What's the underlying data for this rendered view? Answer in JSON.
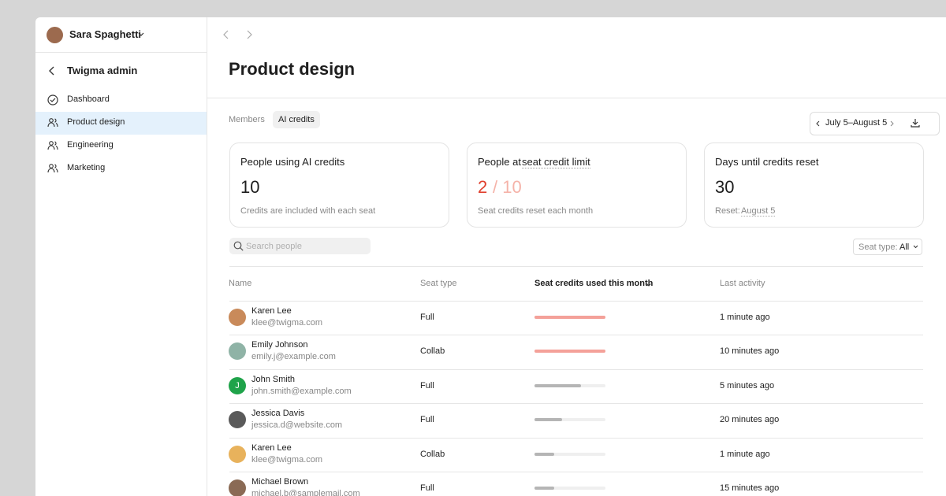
{
  "sidebar": {
    "user": "Sara Spaghetti",
    "back_title": "Twigma admin",
    "nav": [
      "Dashboard",
      "Product design",
      "Engineering",
      "Marketing"
    ],
    "selected": 1
  },
  "header": {
    "title": "Product design"
  },
  "tabs": [
    "Members",
    "AI credits"
  ],
  "date_range": "July 5–August 5",
  "cards": [
    {
      "title": "People using AI credits",
      "value": 10,
      "note": "Credits are included with each seat"
    },
    {
      "title_prefix": "People at",
      "title_link": "seat credit limit",
      "value": 2,
      "total_label": "/ 10",
      "note": "Seat credits reset each month"
    },
    {
      "title": "Days until credits reset",
      "value": 30,
      "note_prefix": "Reset:",
      "note_link": "August 5"
    }
  ],
  "search_placeholder": "Search people",
  "filter": {
    "label": "Seat type:",
    "value": "All"
  },
  "table": {
    "columns": [
      "Name",
      "Seat type",
      "Seat credits used this month",
      "Last activity"
    ],
    "rows": [
      {
        "name": "Karen Lee",
        "email": "klee@twigma.com",
        "seat": "Full",
        "credits": 1.0,
        "bar_color": "#f4a199",
        "activity": "1 minute ago",
        "avatar_color": "#c98a5a"
      },
      {
        "name": "Emily Johnson",
        "email": "emily.j@example.com",
        "seat": "Collab",
        "credits": 1.0,
        "bar_color": "#f4a199",
        "activity": "10 minutes ago",
        "avatar_color": "#8fb3a6"
      },
      {
        "name": "John Smith",
        "email": "john.smith@example.com",
        "seat": "Full",
        "credits": 0.66,
        "bar_color": "#b5b5b5",
        "activity": "5 minutes ago",
        "avatar_color": "#1fa34a",
        "initial": "J"
      },
      {
        "name": "Jessica Davis",
        "email": "jessica.d@website.com",
        "seat": "Full",
        "credits": 0.39,
        "bar_color": "#b5b5b5",
        "activity": "20 minutes ago",
        "avatar_color": "#5a5a5a"
      },
      {
        "name": "Karen Lee",
        "email": "klee@twigma.com",
        "seat": "Collab",
        "credits": 0.28,
        "bar_color": "#b5b5b5",
        "activity": "1 minute ago",
        "avatar_color": "#e8b25c"
      },
      {
        "name": "Michael Brown",
        "email": "michael.b@samplemail.com",
        "seat": "Full",
        "credits": 0.28,
        "bar_color": "#b5b5b5",
        "activity": "15 minutes ago",
        "avatar_color": "#8a6a55"
      }
    ]
  }
}
